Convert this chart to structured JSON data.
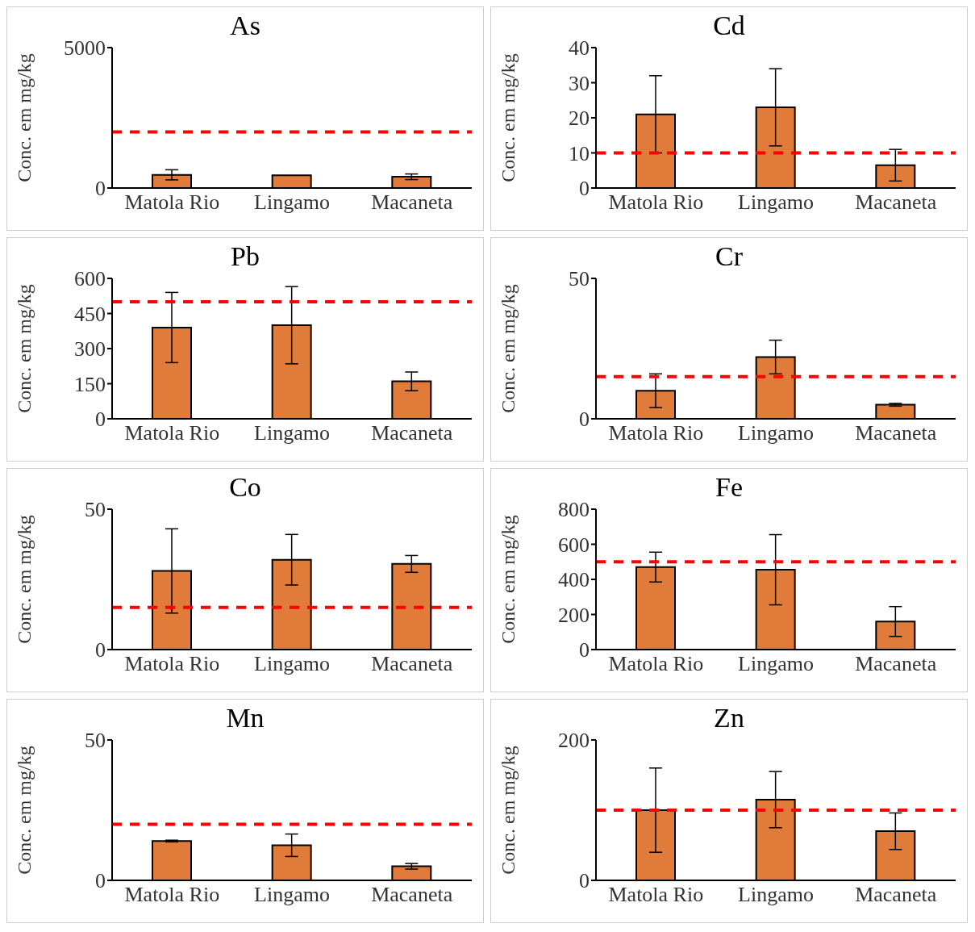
{
  "chart_data": [
    {
      "type": "bar",
      "title": "As",
      "ylabel": "Conc. em mg/kg",
      "categories": [
        "Matola Rio",
        "Lingamo",
        "Macaneta"
      ],
      "values": [
        470,
        450,
        400
      ],
      "errors": [
        180,
        null,
        100
      ],
      "color": "#e07b39",
      "ylim": [
        0,
        5000
      ],
      "yticks": [
        0,
        5000
      ],
      "ref_lines": [
        {
          "axis": "y",
          "value": 2000,
          "color": "#ff0000",
          "line_style": "dashed"
        }
      ]
    },
    {
      "type": "bar",
      "title": "Cd",
      "ylabel": "Conc. em mg/kg",
      "categories": [
        "Matola Rio",
        "Lingamo",
        "Macaneta"
      ],
      "values": [
        21,
        23,
        6.5
      ],
      "errors": [
        11,
        11,
        4.5
      ],
      "color": "#e07b39",
      "ylim": [
        0,
        40
      ],
      "yticks": [
        0,
        10,
        20,
        30,
        40
      ],
      "ref_lines": [
        {
          "axis": "y",
          "value": 10,
          "color": "#ff0000",
          "line_style": "dashed"
        }
      ]
    },
    {
      "type": "bar",
      "title": "Pb",
      "ylabel": "Conc. em mg/kg",
      "categories": [
        "Matola Rio",
        "Lingamo",
        "Macaneta"
      ],
      "values": [
        390,
        400,
        160
      ],
      "errors": [
        150,
        165,
        40
      ],
      "color": "#e07b39",
      "ylim": [
        0,
        600
      ],
      "yticks": [
        0,
        150,
        300,
        450,
        600
      ],
      "ref_lines": [
        {
          "axis": "y",
          "value": 500,
          "color": "#ff0000",
          "line_style": "dashed"
        }
      ]
    },
    {
      "type": "bar",
      "title": "Cr",
      "ylabel": "Conc. em mg/kg",
      "categories": [
        "Matola Rio",
        "Lingamo",
        "Macaneta"
      ],
      "values": [
        10,
        22,
        5
      ],
      "errors": [
        6,
        6,
        0.5
      ],
      "color": "#e07b39",
      "ylim": [
        0,
        50
      ],
      "yticks": [
        0,
        50
      ],
      "ref_lines": [
        {
          "axis": "y",
          "value": 15,
          "color": "#ff0000",
          "line_style": "dashed"
        }
      ]
    },
    {
      "type": "bar",
      "title": "Co",
      "ylabel": "Conc. em mg/kg",
      "categories": [
        "Matola Rio",
        "Lingamo",
        "Macaneta"
      ],
      "values": [
        28,
        32,
        30.5
      ],
      "errors": [
        15,
        9,
        3
      ],
      "color": "#e07b39",
      "ylim": [
        0,
        50
      ],
      "yticks": [
        0,
        50
      ],
      "ref_lines": [
        {
          "axis": "y",
          "value": 15,
          "color": "#ff0000",
          "line_style": "dashed"
        }
      ]
    },
    {
      "type": "bar",
      "title": "Fe",
      "ylabel": "Conc. em mg/kg",
      "categories": [
        "Matola Rio",
        "Lingamo",
        "Macaneta"
      ],
      "values": [
        470,
        455,
        160
      ],
      "errors": [
        85,
        200,
        85
      ],
      "color": "#e07b39",
      "ylim": [
        0,
        800
      ],
      "yticks": [
        0,
        200,
        400,
        600,
        800
      ],
      "ref_lines": [
        {
          "axis": "y",
          "value": 500,
          "color": "#ff0000",
          "line_style": "dashed"
        }
      ]
    },
    {
      "type": "bar",
      "title": "Mn",
      "ylabel": "Conc. em mg/kg",
      "categories": [
        "Matola Rio",
        "Lingamo",
        "Macaneta"
      ],
      "values": [
        14,
        12.5,
        5
      ],
      "errors": [
        0.3,
        4,
        1
      ],
      "color": "#e07b39",
      "ylim": [
        0,
        50
      ],
      "yticks": [
        0,
        50
      ],
      "ref_lines": [
        {
          "axis": "y",
          "value": 20,
          "color": "#ff0000",
          "line_style": "dashed"
        }
      ]
    },
    {
      "type": "bar",
      "title": "Zn",
      "ylabel": "Conc. em mg/kg",
      "categories": [
        "Matola Rio",
        "Lingamo",
        "Macaneta"
      ],
      "values": [
        100,
        115,
        70
      ],
      "errors": [
        60,
        40,
        26
      ],
      "color": "#e07b39",
      "ylim": [
        0,
        200
      ],
      "yticks": [
        0,
        200
      ],
      "ref_lines": [
        {
          "axis": "y",
          "value": 100,
          "color": "#ff0000",
          "line_style": "dashed"
        }
      ]
    }
  ]
}
